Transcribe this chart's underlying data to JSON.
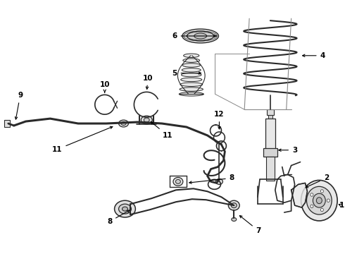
{
  "bg_color": "#ffffff",
  "line_color": "#2a2a2a",
  "label_color": "#000000",
  "figsize": [
    4.9,
    3.6
  ],
  "dpi": 100,
  "lw_main": 1.3,
  "lw_thin": 0.9,
  "font_size": 7.5
}
